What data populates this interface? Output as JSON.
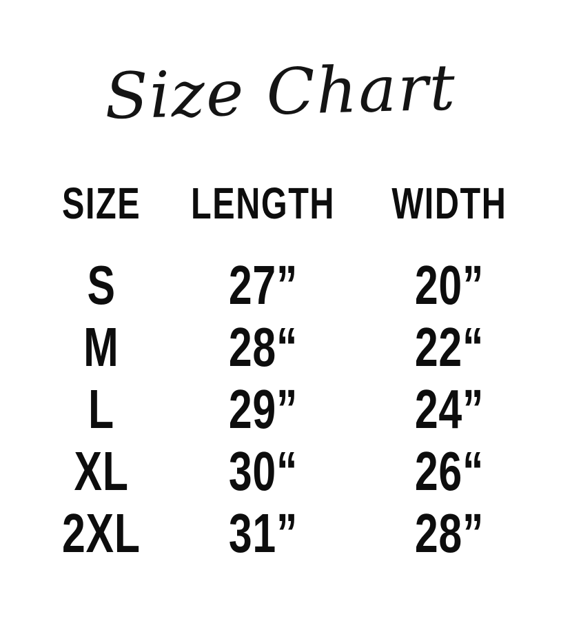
{
  "page": {
    "background_color": "#ffffff",
    "text_color": "#0d0d0d"
  },
  "title": {
    "text": "Size Chart"
  },
  "table": {
    "headers": [
      "SIZE",
      "LENGTH",
      "WIDTH"
    ],
    "rows": [
      {
        "size": "S",
        "length": "27”",
        "width": "20”"
      },
      {
        "size": "M",
        "length": "28“",
        "width": "22“"
      },
      {
        "size": "L",
        "length": "29”",
        "width": "24”"
      },
      {
        "size": "XL",
        "length": "30“",
        "width": "26“"
      },
      {
        "size": "2XL",
        "length": "31”",
        "width": "28”"
      }
    ]
  },
  "chart_data": {
    "type": "table",
    "title": "Size Chart",
    "columns": [
      "SIZE",
      "LENGTH",
      "WIDTH"
    ],
    "rows": [
      [
        "S",
        "27”",
        "20”"
      ],
      [
        "M",
        "28“",
        "22“"
      ],
      [
        "L",
        "29”",
        "24”"
      ],
      [
        "XL",
        "30“",
        "26“"
      ],
      [
        "2XL",
        "31”",
        "28”"
      ]
    ],
    "length_values_inches": [
      27,
      28,
      29,
      30,
      31
    ],
    "width_values_inches": [
      20,
      22,
      24,
      26,
      28
    ],
    "grid": false,
    "legend": false
  }
}
